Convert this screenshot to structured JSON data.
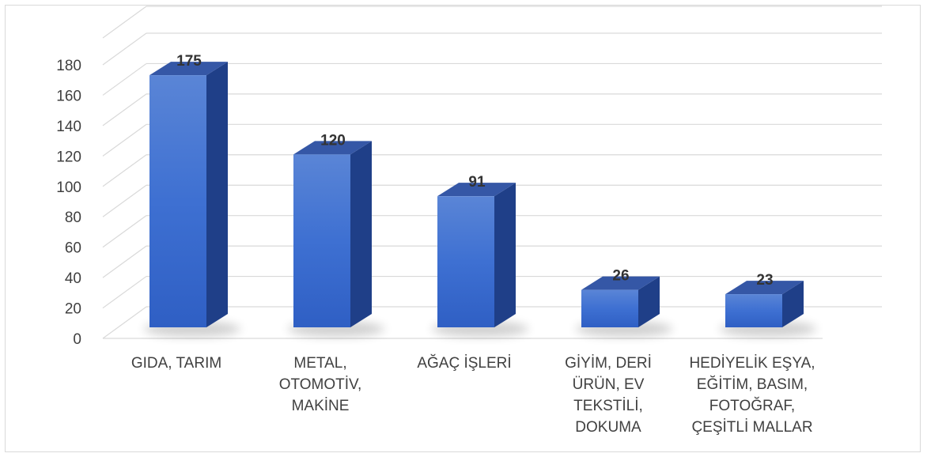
{
  "chart_data": {
    "type": "bar",
    "categories": [
      "GIDA, TARIM",
      "METAL,\nOTOMOTİV,\nMAKİNE",
      "AĞAÇ İŞLERİ",
      "GİYİM, DERİ\nÜRÜN, EV\nTEKSTİLİ,\nDOKUMA",
      "HEDİYELİK EŞYA,\nEĞİTİM, BASIM,\nFOTOĞRAF,\nÇEŞİTLİ MALLAR"
    ],
    "values": [
      175,
      120,
      91,
      26,
      23
    ],
    "data_labels": [
      "175",
      "120",
      "91",
      "26",
      "23"
    ],
    "yticks": [
      "0",
      "20",
      "40",
      "60",
      "80",
      "100",
      "120",
      "140",
      "160",
      "180"
    ],
    "ylim": [
      0,
      180
    ],
    "grid": true,
    "style": "3d-column",
    "colors": {
      "bar_front": "#3d6fd1",
      "bar_side": "#1f3f88",
      "bar_top": "#3557a6",
      "grid": "#d9d9d9"
    }
  }
}
